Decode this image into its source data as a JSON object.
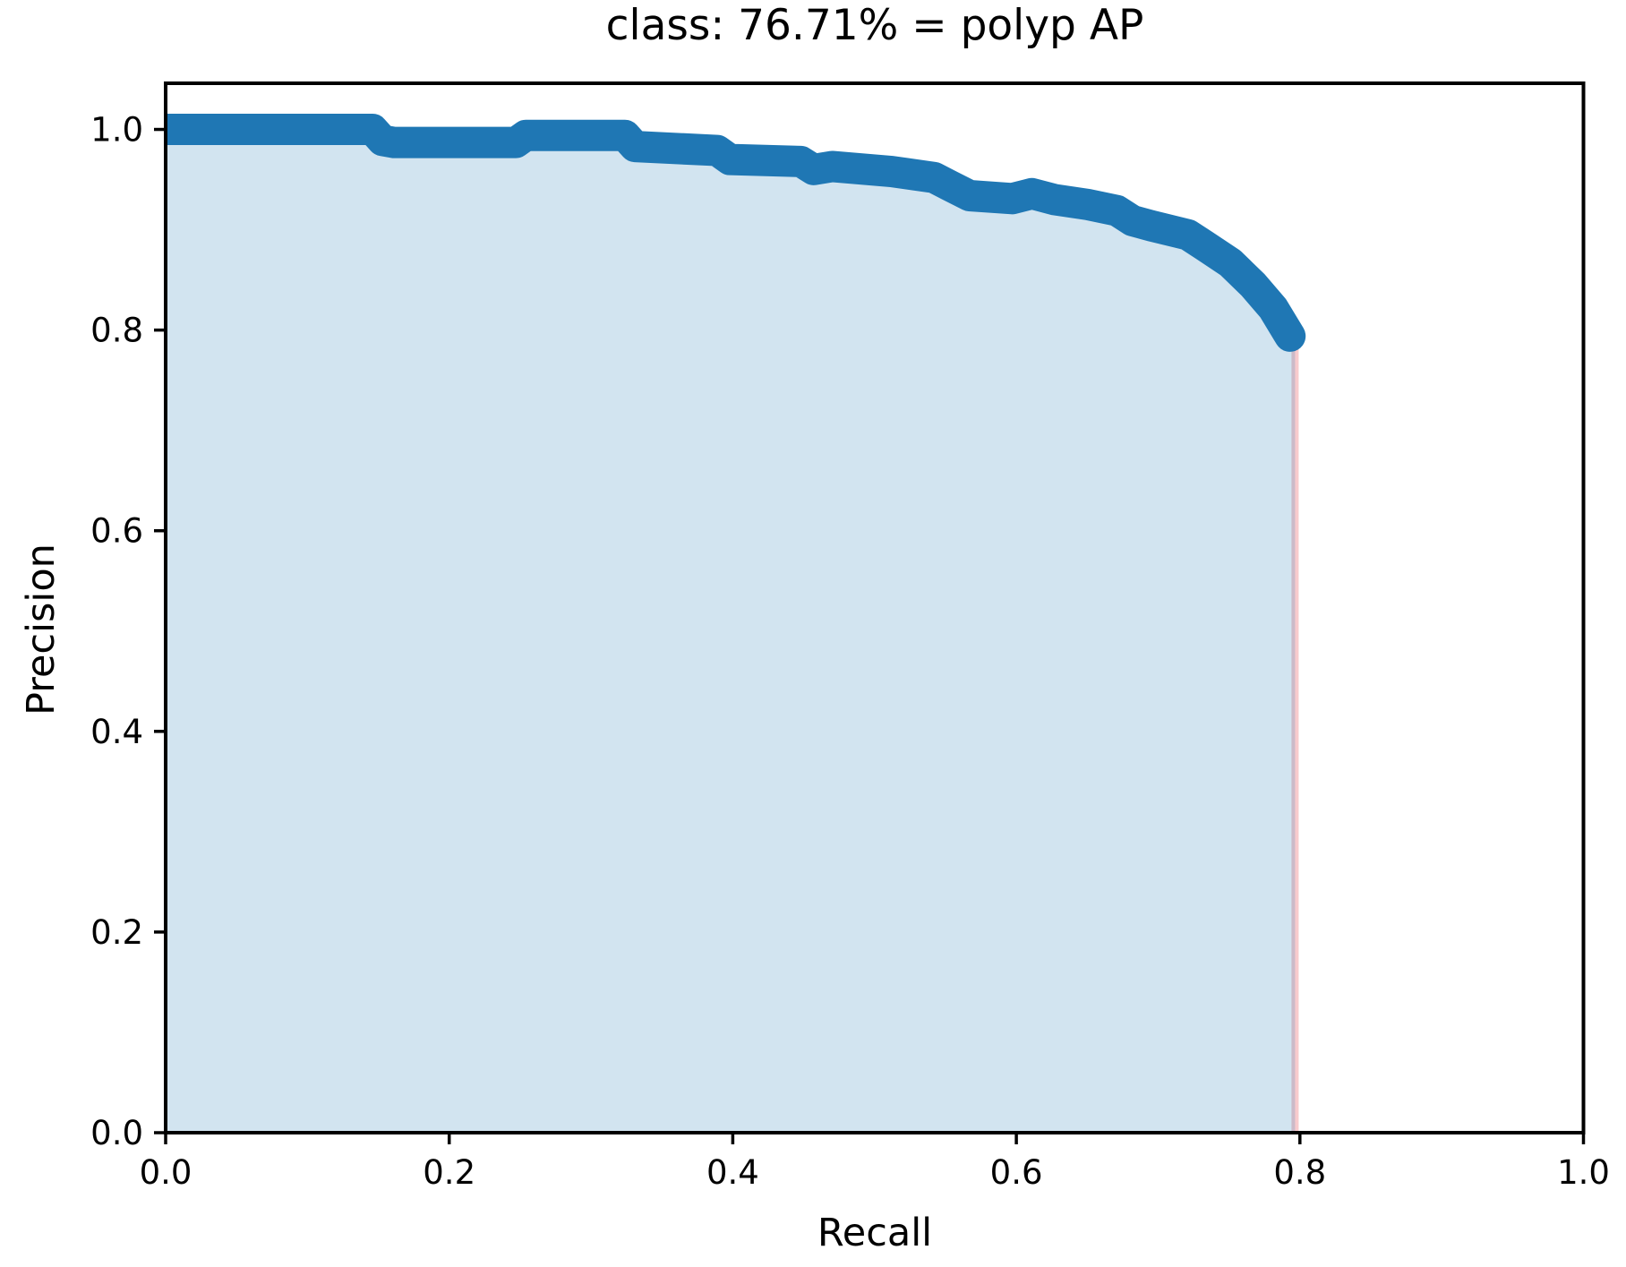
{
  "chart_data": {
    "type": "line",
    "title": "class: 76.71% = polyp AP",
    "xlabel": "Recall",
    "ylabel": "Precision",
    "class_name": "polyp",
    "ap_percent": 76.71,
    "xlim": [
      0.0,
      1.0
    ],
    "ylim": [
      0.0,
      1.046
    ],
    "grid": false,
    "legend": null,
    "xticks": [
      {
        "value": 0.0,
        "label": "0.0"
      },
      {
        "value": 0.2,
        "label": "0.2"
      },
      {
        "value": 0.4,
        "label": "0.4"
      },
      {
        "value": 0.6,
        "label": "0.6"
      },
      {
        "value": 0.8,
        "label": "0.8"
      },
      {
        "value": 1.0,
        "label": "1.0"
      }
    ],
    "yticks": [
      {
        "value": 0.0,
        "label": "0.0"
      },
      {
        "value": 0.2,
        "label": "0.2"
      },
      {
        "value": 0.4,
        "label": "0.4"
      },
      {
        "value": 0.6,
        "label": "0.6"
      },
      {
        "value": 0.8,
        "label": "0.8"
      },
      {
        "value": 1.0,
        "label": "1.0"
      }
    ],
    "series": [
      {
        "name": "precision-recall-curve",
        "color": "#1f77b4",
        "fill_color": "rgba(31,119,180,0.2)",
        "points": [
          [
            0.0,
            1.0
          ],
          [
            0.146,
            1.0
          ],
          [
            0.153,
            0.989
          ],
          [
            0.161,
            0.987
          ],
          [
            0.247,
            0.987
          ],
          [
            0.254,
            0.994
          ],
          [
            0.324,
            0.994
          ],
          [
            0.331,
            0.983
          ],
          [
            0.389,
            0.979
          ],
          [
            0.398,
            0.97
          ],
          [
            0.448,
            0.968
          ],
          [
            0.457,
            0.96
          ],
          [
            0.47,
            0.963
          ],
          [
            0.512,
            0.958
          ],
          [
            0.542,
            0.952
          ],
          [
            0.553,
            0.944
          ],
          [
            0.567,
            0.934
          ],
          [
            0.597,
            0.931
          ],
          [
            0.611,
            0.936
          ],
          [
            0.627,
            0.93
          ],
          [
            0.651,
            0.925
          ],
          [
            0.671,
            0.919
          ],
          [
            0.682,
            0.909
          ],
          [
            0.695,
            0.904
          ],
          [
            0.721,
            0.895
          ],
          [
            0.733,
            0.884
          ],
          [
            0.751,
            0.867
          ],
          [
            0.767,
            0.845
          ],
          [
            0.781,
            0.822
          ],
          [
            0.793,
            0.794
          ]
        ]
      }
    ],
    "max_recall_line": {
      "x": 0.7966,
      "top_precision": 0.79,
      "color": "#f8cbcd"
    }
  }
}
